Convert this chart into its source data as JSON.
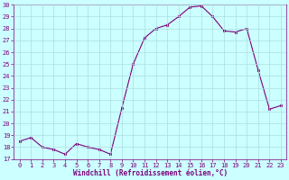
{
  "x": [
    0,
    1,
    2,
    3,
    4,
    5,
    6,
    7,
    8,
    9,
    10,
    11,
    12,
    13,
    14,
    15,
    16,
    17,
    18,
    19,
    20,
    21,
    22,
    23
  ],
  "y": [
    18.5,
    18.8,
    18.0,
    17.8,
    17.4,
    18.3,
    18.0,
    17.8,
    17.4,
    21.3,
    25.0,
    27.2,
    28.0,
    28.3,
    29.0,
    29.8,
    29.9,
    29.0,
    27.8,
    27.7,
    28.0,
    24.5,
    21.2,
    21.5
  ],
  "line_color": "#7b007b",
  "marker": "s",
  "marker_size": 2,
  "bg_color": "#ccffff",
  "grid_color": "#aadddd",
  "xlabel": "Windchill (Refroidissement éolien,°C)",
  "tick_color": "#7b007b",
  "ylim": [
    17,
    30
  ],
  "xlim": [
    -0.5,
    23.5
  ],
  "yticks": [
    17,
    18,
    19,
    20,
    21,
    22,
    23,
    24,
    25,
    26,
    27,
    28,
    29,
    30
  ],
  "xticks": [
    0,
    1,
    2,
    3,
    4,
    5,
    6,
    7,
    8,
    9,
    10,
    11,
    12,
    13,
    14,
    15,
    16,
    17,
    18,
    19,
    20,
    21,
    22,
    23
  ],
  "tick_fontsize": 5,
  "xlabel_fontsize": 5.5
}
